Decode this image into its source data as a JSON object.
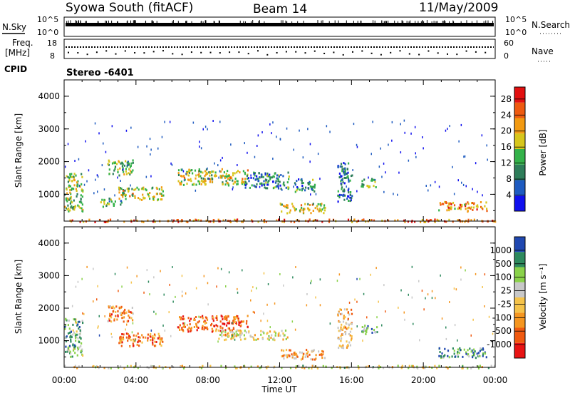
{
  "header": {
    "title": "Syowa South (fitACF)",
    "beam": "Beam 14",
    "date": "11/May/2009"
  },
  "strip_labels": {
    "nsky": "N.Sky",
    "nsearch": "N.Search",
    "freq_line1": "Freq.",
    "freq_line2": "[MHz]",
    "nave": "Nave",
    "cpid": "CPID",
    "cpid_value": "Stereo -6401"
  },
  "strip_ticks": {
    "nsky_left": [
      "10^5",
      "10^0"
    ],
    "nsky_right": [
      "10^5",
      "10^0"
    ],
    "freq_left": [
      "18",
      "8"
    ],
    "freq_right": [
      "60",
      "0"
    ]
  },
  "x_axis": {
    "label": "Time UT",
    "ticks": [
      "00:00",
      "04:00",
      "08:00",
      "12:00",
      "16:00",
      "20:00",
      "00:00"
    ]
  },
  "panels": {
    "power": {
      "ylabel": "Slant Range [km]",
      "yticks": [
        "4000",
        "3000",
        "2000",
        "1000"
      ],
      "colorbar_label": "Power [dB]",
      "colorbar_ticks": [
        "28",
        "24",
        "20",
        "16",
        "12",
        "8",
        "4"
      ]
    },
    "velocity": {
      "ylabel": "Slant Range [km]",
      "yticks": [
        "4000",
        "3000",
        "2000",
        "1000"
      ],
      "colorbar_label": "Velocity [m s⁻¹]",
      "colorbar_ticks": [
        "1000",
        "500",
        "100",
        "25",
        "-25",
        "-100",
        "-500",
        "-1000"
      ]
    }
  },
  "chart_data": [
    {
      "type": "heatmap",
      "name": "power",
      "xlim": [
        0,
        24
      ],
      "ylim": [
        180,
        4500
      ],
      "xlabel": "Time UT",
      "ylabel": "Slant Range [km]",
      "colorbar": {
        "label": "Power [dB]",
        "range": [
          0,
          31
        ],
        "ticks": [
          4,
          8,
          12,
          16,
          20,
          24,
          28
        ]
      },
      "colormap": [
        "#1010ee",
        "#1e5bc0",
        "#2e7d5a",
        "#34b24a",
        "#d7c61c",
        "#f29a12",
        "#ee5a10",
        "#e21010"
      ],
      "regions": [
        {
          "t": [
            2.4,
            3.8
          ],
          "r": [
            1600,
            2100
          ],
          "level": 0.45
        },
        {
          "t": [
            3.0,
            5.5
          ],
          "r": [
            850,
            1250
          ],
          "level": 0.55
        },
        {
          "t": [
            2.0,
            3.2
          ],
          "r": [
            650,
            900
          ],
          "level": 0.35
        },
        {
          "t": [
            6.3,
            10.2
          ],
          "r": [
            1300,
            1800
          ],
          "level": 0.55
        },
        {
          "t": [
            10.0,
            12.5
          ],
          "r": [
            1200,
            1700
          ],
          "level": 0.3
        },
        {
          "t": [
            12.8,
            14.0
          ],
          "r": [
            1100,
            1500
          ],
          "level": 0.3
        },
        {
          "t": [
            12.0,
            14.5
          ],
          "r": [
            450,
            750
          ],
          "level": 0.55
        },
        {
          "t": [
            15.2,
            16.0
          ],
          "r": [
            800,
            2000
          ],
          "level": 0.25
        },
        {
          "t": [
            16.5,
            17.4
          ],
          "r": [
            1200,
            1500
          ],
          "level": 0.4
        },
        {
          "t": [
            20.8,
            23.5
          ],
          "r": [
            500,
            800
          ],
          "level": 0.7
        },
        {
          "t": [
            0.0,
            1.0
          ],
          "r": [
            500,
            1700
          ],
          "level": 0.5
        },
        {
          "t": [
            0.0,
            24.0
          ],
          "r": [
            180,
            260
          ],
          "level": 0.8
        }
      ]
    },
    {
      "type": "heatmap",
      "name": "velocity",
      "xlim": [
        0,
        24
      ],
      "ylim": [
        180,
        4500
      ],
      "xlabel": "Time UT",
      "ylabel": "Slant Range [km]",
      "colorbar": {
        "label": "Velocity [m s⁻¹]",
        "range": [
          -1200,
          1200
        ],
        "ticks": [
          1000,
          500,
          100,
          25,
          -25,
          -100,
          -500,
          -1000
        ]
      },
      "colormap": [
        "#e81414",
        "#f05a10",
        "#f59620",
        "#f5c34a",
        "#c8c8c8",
        "#8ad24a",
        "#2e8a5e",
        "#2048b0"
      ],
      "regions": [
        {
          "t": [
            2.4,
            3.8
          ],
          "r": [
            1600,
            2100
          ],
          "level": 0.3
        },
        {
          "t": [
            3.0,
            5.5
          ],
          "r": [
            850,
            1250
          ],
          "level": 0.25
        },
        {
          "t": [
            6.3,
            10.2
          ],
          "r": [
            1300,
            1800
          ],
          "level": 0.2
        },
        {
          "t": [
            8.5,
            12.5
          ],
          "r": [
            1050,
            1350
          ],
          "level": 0.5
        },
        {
          "t": [
            12.0,
            14.5
          ],
          "r": [
            450,
            750
          ],
          "level": 0.35
        },
        {
          "t": [
            15.2,
            16.0
          ],
          "r": [
            800,
            2000
          ],
          "level": 0.4
        },
        {
          "t": [
            16.5,
            17.4
          ],
          "r": [
            1200,
            1500
          ],
          "level": 0.75
        },
        {
          "t": [
            20.8,
            23.5
          ],
          "r": [
            500,
            800
          ],
          "level": 0.8
        },
        {
          "t": [
            0.0,
            1.0
          ],
          "r": [
            500,
            1700
          ],
          "level": 0.7
        },
        {
          "t": [
            0.0,
            24.0
          ],
          "r": [
            180,
            260
          ],
          "level": 0.55
        }
      ]
    }
  ]
}
